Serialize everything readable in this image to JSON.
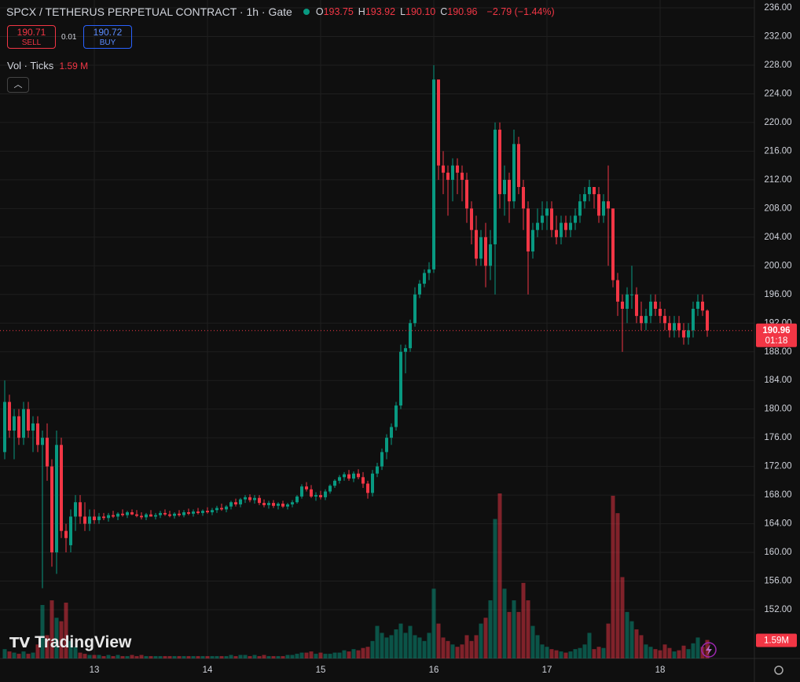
{
  "header": {
    "symbol": "SPCX / TETHERUS PERPETUAL CONTRACT · 1h · Gate",
    "ohlc": [
      {
        "key": "O",
        "value": "193.75"
      },
      {
        "key": "H",
        "value": "193.92"
      },
      {
        "key": "L",
        "value": "190.10"
      },
      {
        "key": "C",
        "value": "190.96"
      }
    ],
    "change": "−2.79 (−1.44%)",
    "sell_price": "190.71",
    "sell": "SELL",
    "spread": "0.01",
    "buy_price": "190.72",
    "buy": "BUY",
    "volume_legend": "Vol · Ticks",
    "volume_legend_value": "1.59 M",
    "brand": "TradingView"
  },
  "chart_data": {
    "type": "candlestick",
    "up_color": "#089981",
    "down_color": "#f23645",
    "grid": true,
    "last_price_label": "190.96",
    "countdown": "01:18",
    "volume_label": "1.59M",
    "ylim": [
      145.2,
      237.1
    ],
    "yticks": [
      {
        "value": 152,
        "label": "152.00"
      },
      {
        "value": 156,
        "label": "156.00"
      },
      {
        "value": 160,
        "label": "160.00"
      },
      {
        "value": 164,
        "label": "164.00"
      },
      {
        "value": 168,
        "label": "168.00"
      },
      {
        "value": 172,
        "label": "172.00"
      },
      {
        "value": 176,
        "label": "176.00"
      },
      {
        "value": 180,
        "label": "180.00"
      },
      {
        "value": 184,
        "label": "184.00"
      },
      {
        "value": 188,
        "label": "188.00"
      },
      {
        "value": 192,
        "label": "192.00"
      },
      {
        "value": 196,
        "label": "196.00"
      },
      {
        "value": 200,
        "label": "200.00"
      },
      {
        "value": 204,
        "label": "204.00"
      },
      {
        "value": 208,
        "label": "208.00"
      },
      {
        "value": 212,
        "label": "212.00"
      },
      {
        "value": 216,
        "label": "216.00"
      },
      {
        "value": 220,
        "label": "220.00"
      },
      {
        "value": 224,
        "label": "224.00"
      },
      {
        "value": 228,
        "label": "228.00"
      },
      {
        "value": 232,
        "label": "232.00"
      },
      {
        "value": 236,
        "label": "236.00"
      }
    ],
    "categories": [
      null,
      null,
      null,
      null,
      null,
      null,
      null,
      null,
      null,
      null,
      null,
      null,
      null,
      null,
      null,
      null,
      null,
      null,
      null,
      "13",
      null,
      null,
      null,
      null,
      null,
      null,
      null,
      null,
      null,
      null,
      null,
      null,
      null,
      null,
      null,
      null,
      null,
      null,
      null,
      null,
      null,
      null,
      null,
      "14",
      null,
      null,
      null,
      null,
      null,
      null,
      null,
      null,
      null,
      null,
      null,
      null,
      null,
      null,
      null,
      null,
      null,
      null,
      null,
      null,
      null,
      null,
      null,
      "15",
      null,
      null,
      null,
      null,
      null,
      null,
      null,
      null,
      null,
      null,
      null,
      null,
      null,
      null,
      null,
      null,
      null,
      null,
      null,
      null,
      null,
      null,
      null,
      "16",
      null,
      null,
      null,
      null,
      null,
      null,
      null,
      null,
      null,
      null,
      null,
      null,
      null,
      null,
      null,
      null,
      null,
      null,
      null,
      null,
      null,
      null,
      null,
      "17",
      null,
      null,
      null,
      null,
      null,
      null,
      null,
      null,
      null,
      null,
      null,
      null,
      null,
      null,
      null,
      null,
      null,
      null,
      null,
      null,
      null,
      null,
      null,
      "18",
      null,
      null,
      null,
      null,
      null,
      null,
      null,
      null,
      null,
      null
    ],
    "candles": [
      [
        174,
        184,
        173,
        181,
        0.8
      ],
      [
        181,
        182,
        176,
        177,
        0.6
      ],
      [
        177,
        180,
        173,
        179,
        0.5
      ],
      [
        179,
        180,
        175,
        176,
        0.4
      ],
      [
        176,
        181,
        175,
        180,
        0.6
      ],
      [
        180,
        181,
        176,
        177,
        0.4
      ],
      [
        177,
        179,
        174,
        178,
        0.5
      ],
      [
        178,
        179,
        174,
        175,
        1.2
      ],
      [
        175,
        177,
        155,
        176,
        4.6
      ],
      [
        176,
        178,
        170,
        172,
        2.0
      ],
      [
        172,
        173,
        158,
        160,
        5.0
      ],
      [
        160,
        177,
        157,
        175,
        3.5
      ],
      [
        175,
        176,
        162,
        163,
        3.2
      ],
      [
        163,
        164,
        160,
        162,
        4.8
      ],
      [
        161,
        166,
        160,
        165,
        1.5
      ],
      [
        165,
        168,
        163,
        167,
        1.0
      ],
      [
        167,
        168,
        164,
        165,
        0.5
      ],
      [
        165,
        167,
        163,
        164,
        0.4
      ],
      [
        164,
        166,
        163,
        165,
        0.3
      ],
      [
        165,
        166,
        164,
        164.5,
        0.3
      ],
      [
        164.5,
        165.5,
        164,
        165,
        0.3
      ],
      [
        165,
        165.5,
        164.5,
        164.8,
        0.2
      ],
      [
        164.8,
        165.5,
        164.3,
        165.2,
        0.3
      ],
      [
        165.2,
        165.8,
        164.8,
        165,
        0.2
      ],
      [
        165,
        165.6,
        164.5,
        165.4,
        0.3
      ],
      [
        165.4,
        166,
        165,
        165.2,
        0.2
      ],
      [
        165.2,
        165.8,
        164.8,
        165.6,
        0.2
      ],
      [
        165.6,
        166,
        165.2,
        165.3,
        0.3
      ],
      [
        165.3,
        165.9,
        164.9,
        165.1,
        0.2
      ],
      [
        165.1,
        165.6,
        164.6,
        164.9,
        0.3
      ],
      [
        164.9,
        165.5,
        164.5,
        165.3,
        0.2
      ],
      [
        165.3,
        165.9,
        165,
        165,
        0.2
      ],
      [
        165,
        165.5,
        164.6,
        165.2,
        0.2
      ],
      [
        165.2,
        165.8,
        164.8,
        165.5,
        0.2
      ],
      [
        165.5,
        166,
        165.1,
        165.3,
        0.2
      ],
      [
        165.3,
        165.8,
        164.9,
        165.1,
        0.2
      ],
      [
        165.1,
        165.6,
        164.7,
        165.4,
        0.2
      ],
      [
        165.4,
        165.9,
        165,
        165.2,
        0.2
      ],
      [
        165.2,
        165.9,
        164.9,
        165.6,
        0.2
      ],
      [
        165.6,
        166.1,
        165.2,
        165.4,
        0.2
      ],
      [
        165.4,
        166,
        165,
        165.7,
        0.2
      ],
      [
        165.7,
        166.2,
        165.3,
        165.5,
        0.2
      ],
      [
        165.5,
        166,
        165.1,
        165.8,
        0.2
      ],
      [
        165.8,
        166.3,
        165.4,
        165.6,
        0.2
      ],
      [
        165.6,
        166.2,
        165.2,
        165.9,
        0.2
      ],
      [
        165.9,
        166.5,
        165.5,
        166.2,
        0.2
      ],
      [
        166.2,
        166.8,
        165.8,
        166,
        0.2
      ],
      [
        166,
        166.6,
        165.6,
        166.4,
        0.2
      ],
      [
        166.4,
        167.2,
        166,
        167,
        0.3
      ],
      [
        167,
        167.5,
        166.4,
        166.7,
        0.2
      ],
      [
        166.7,
        167.6,
        166.3,
        167.4,
        0.3
      ],
      [
        167.4,
        168,
        166.9,
        167.7,
        0.3
      ],
      [
        167.7,
        168.1,
        167,
        167.3,
        0.2
      ],
      [
        167.3,
        168,
        166.8,
        167.6,
        0.3
      ],
      [
        167.6,
        168,
        166.6,
        166.9,
        0.2
      ],
      [
        166.9,
        167.4,
        166.3,
        166.6,
        0.3
      ],
      [
        166.6,
        167.2,
        166.1,
        166.9,
        0.2
      ],
      [
        166.9,
        167.3,
        166.2,
        166.5,
        0.2
      ],
      [
        166.5,
        167,
        166,
        166.8,
        0.2
      ],
      [
        166.8,
        167.2,
        166.2,
        166.4,
        0.2
      ],
      [
        166.4,
        166.9,
        166,
        166.7,
        0.3
      ],
      [
        166.7,
        167.3,
        166.3,
        167,
        0.3
      ],
      [
        167,
        168,
        166.8,
        167.8,
        0.4
      ],
      [
        167.8,
        169.5,
        167.5,
        169.2,
        0.5
      ],
      [
        169.2,
        169.8,
        168.5,
        168.8,
        0.5
      ],
      [
        168.8,
        169.4,
        167.6,
        167.8,
        0.6
      ],
      [
        167.8,
        168.4,
        167.2,
        168,
        0.4
      ],
      [
        168,
        168.6,
        167.4,
        167.7,
        0.5
      ],
      [
        167.7,
        168.8,
        167.3,
        168.5,
        0.4
      ],
      [
        168.5,
        169.5,
        168.2,
        169.3,
        0.4
      ],
      [
        169.3,
        170.2,
        169,
        170,
        0.5
      ],
      [
        170,
        170.8,
        169.6,
        170.5,
        0.5
      ],
      [
        170.5,
        171.2,
        170,
        170.9,
        0.7
      ],
      [
        170.9,
        171.5,
        170,
        170.3,
        0.6
      ],
      [
        170.3,
        171.3,
        169.8,
        171,
        0.8
      ],
      [
        171,
        171.6,
        170.2,
        170.5,
        0.7
      ],
      [
        170.5,
        171.2,
        169,
        169.6,
        0.9
      ],
      [
        169.6,
        170,
        167.5,
        168.3,
        1.0
      ],
      [
        168.3,
        171.5,
        167.8,
        171,
        1.5
      ],
      [
        171,
        172.5,
        170.5,
        172,
        2.8
      ],
      [
        172,
        174.5,
        171.5,
        174,
        2.2
      ],
      [
        174,
        176.5,
        173,
        176,
        1.8
      ],
      [
        176,
        178,
        175,
        177.5,
        2.0
      ],
      [
        177.5,
        181,
        177,
        180.5,
        2.5
      ],
      [
        180.5,
        189,
        180,
        188,
        3.0
      ],
      [
        188,
        189,
        185,
        188.5,
        2.2
      ],
      [
        188.5,
        192.5,
        188,
        192,
        2.8
      ],
      [
        192,
        197,
        191.5,
        196,
        2.0
      ],
      [
        196,
        198,
        195.5,
        197.5,
        1.8
      ],
      [
        197.5,
        199.5,
        197,
        199,
        1.5
      ],
      [
        199,
        200.5,
        198,
        199.5,
        2.2
      ],
      [
        199.5,
        228,
        199,
        226,
        6.0
      ],
      [
        226,
        226,
        212,
        214,
        3.0
      ],
      [
        214,
        216,
        210,
        213,
        1.8
      ],
      [
        213,
        214,
        207,
        212,
        1.5
      ],
      [
        212,
        215,
        209,
        214,
        1.2
      ],
      [
        214,
        215,
        210,
        213,
        1.0
      ],
      [
        213,
        214,
        209,
        212,
        1.2
      ],
      [
        212,
        213,
        206,
        208,
        2.0
      ],
      [
        208,
        209,
        203,
        205,
        1.5
      ],
      [
        205,
        207,
        200,
        201,
        2.0
      ],
      [
        201,
        205,
        200,
        204,
        3.0
      ],
      [
        204,
        206,
        197,
        200,
        3.5
      ],
      [
        200,
        205,
        198,
        203,
        5.0
      ],
      [
        203,
        220,
        196,
        219,
        12.0
      ],
      [
        219,
        220,
        208,
        210,
        14.2
      ],
      [
        210,
        214,
        207,
        212,
        6.0
      ],
      [
        212,
        213,
        206,
        209,
        4.0
      ],
      [
        209,
        219,
        208,
        217,
        5.0
      ],
      [
        217,
        218,
        210,
        211,
        4.0
      ],
      [
        211,
        212,
        205,
        208,
        6.5
      ],
      [
        208,
        209,
        196,
        202,
        5.0
      ],
      [
        202,
        206,
        201,
        205,
        2.8
      ],
      [
        205,
        208,
        204,
        206,
        2.0
      ],
      [
        206,
        209,
        205,
        207,
        1.2
      ],
      [
        207,
        209,
        205,
        208,
        1.0
      ],
      [
        208,
        209,
        204,
        205,
        0.8
      ],
      [
        205,
        207,
        203,
        204,
        0.7
      ],
      [
        204,
        207,
        203,
        206,
        0.6
      ],
      [
        206,
        207,
        204,
        205,
        0.5
      ],
      [
        205,
        207,
        204,
        206,
        0.6
      ],
      [
        206,
        208,
        205,
        207,
        0.8
      ],
      [
        207,
        210,
        206,
        209,
        0.9
      ],
      [
        209,
        211,
        208,
        210,
        1.2
      ],
      [
        210,
        212,
        209,
        211,
        2.2
      ],
      [
        211,
        211,
        208,
        210,
        0.8
      ],
      [
        210,
        211,
        206,
        207,
        1.0
      ],
      [
        207,
        210,
        206,
        209,
        0.9
      ],
      [
        209,
        214,
        200,
        208,
        3.0
      ],
      [
        208,
        208,
        197,
        198,
        14.0
      ],
      [
        198,
        199,
        193,
        195,
        12.5
      ],
      [
        195,
        196,
        188,
        194,
        7.0
      ],
      [
        194,
        197,
        192,
        196,
        4.0
      ],
      [
        196,
        200,
        194,
        196,
        3.2
      ],
      [
        196,
        197,
        192,
        193,
        2.5
      ],
      [
        193,
        195,
        191,
        192,
        2.0
      ],
      [
        192,
        194,
        191,
        193,
        1.2
      ],
      [
        193,
        196,
        192,
        195,
        1.0
      ],
      [
        195,
        196,
        193,
        194,
        0.8
      ],
      [
        194,
        195,
        192,
        193,
        0.7
      ],
      [
        193,
        194,
        191,
        192,
        1.2
      ],
      [
        192,
        193,
        190,
        191,
        0.9
      ],
      [
        191,
        193,
        190,
        192,
        0.6
      ],
      [
        192,
        193,
        190,
        191,
        0.7
      ],
      [
        191,
        192,
        189,
        190,
        1.1
      ],
      [
        190,
        192,
        189,
        191,
        0.8
      ],
      [
        191,
        195,
        190,
        194,
        1.3
      ],
      [
        194,
        196,
        193,
        195,
        1.8
      ],
      [
        195,
        196,
        193,
        193.75,
        1.0
      ],
      [
        193.75,
        193.92,
        190.1,
        190.96,
        1.59
      ]
    ]
  }
}
